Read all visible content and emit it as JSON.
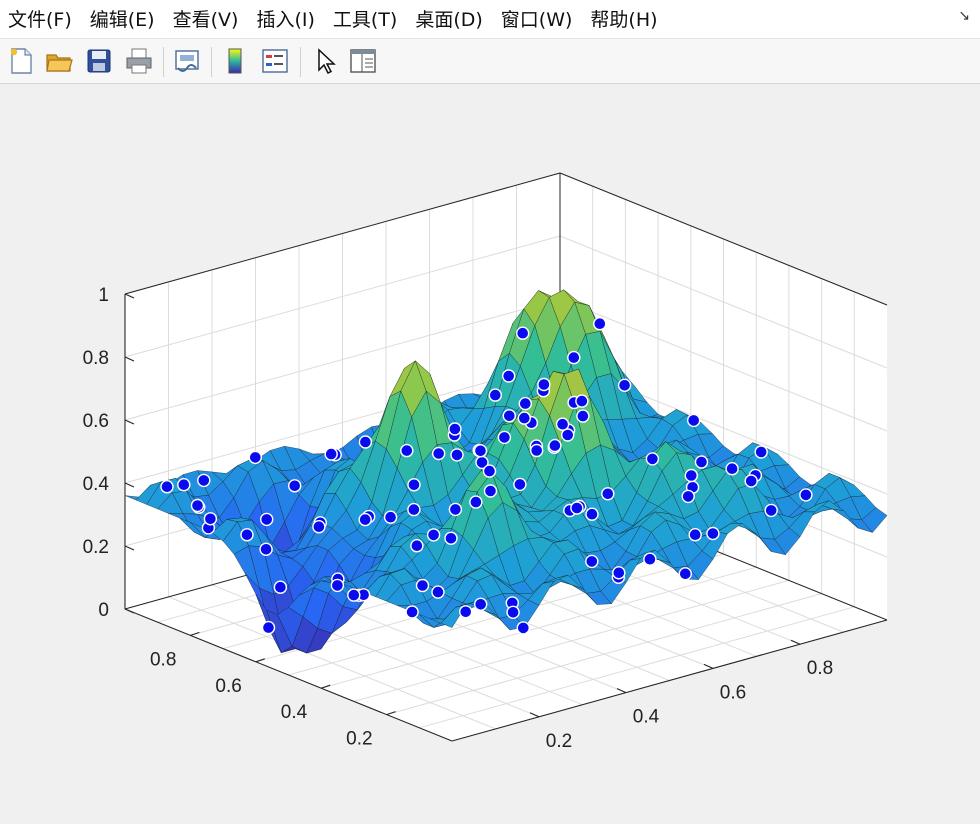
{
  "menubar": {
    "items": [
      "文件(F)",
      "编辑(E)",
      "查看(V)",
      "插入(I)",
      "工具(T)",
      "桌面(D)",
      "窗口(W)",
      "帮助(H)"
    ],
    "dock_icon": "dock-arrow-icon"
  },
  "toolbar": {
    "buttons": [
      {
        "name": "new-figure",
        "icon": "new-document-icon"
      },
      {
        "name": "open-file",
        "icon": "open-folder-icon"
      },
      {
        "name": "save",
        "icon": "save-disk-icon"
      },
      {
        "name": "print",
        "icon": "printer-icon"
      },
      {
        "name": "link-plot",
        "icon": "link-plot-icon"
      },
      {
        "name": "insert-colorbar",
        "icon": "colorbar-icon"
      },
      {
        "name": "insert-legend",
        "icon": "legend-icon"
      },
      {
        "name": "edit-plot",
        "icon": "pointer-arrow-icon"
      },
      {
        "name": "property-inspector",
        "icon": "panel-icon"
      }
    ]
  },
  "axes": {
    "z_ticks": [
      "0",
      "0.2",
      "0.4",
      "0.6",
      "0.8",
      "1"
    ],
    "y_ticks": [
      "0.2",
      "0.4",
      "0.6",
      "0.8"
    ],
    "x_ticks": [
      "0.2",
      "0.4",
      "0.6",
      "0.8"
    ]
  },
  "chart_data": {
    "type": "surface",
    "title": "",
    "xlabel": "",
    "ylabel": "",
    "zlabel": "",
    "xlim": [
      0,
      1
    ],
    "ylim": [
      0,
      1
    ],
    "zlim": [
      0,
      1
    ],
    "grid": true,
    "colormap": "parula",
    "marker_color": "#0a0aee",
    "surface": "interpolated surface over scattered sample points, values roughly 0 to 1 with several peaks",
    "scatter": "about 100 blue sample points on the surface, z values roughly 0 to 1"
  }
}
